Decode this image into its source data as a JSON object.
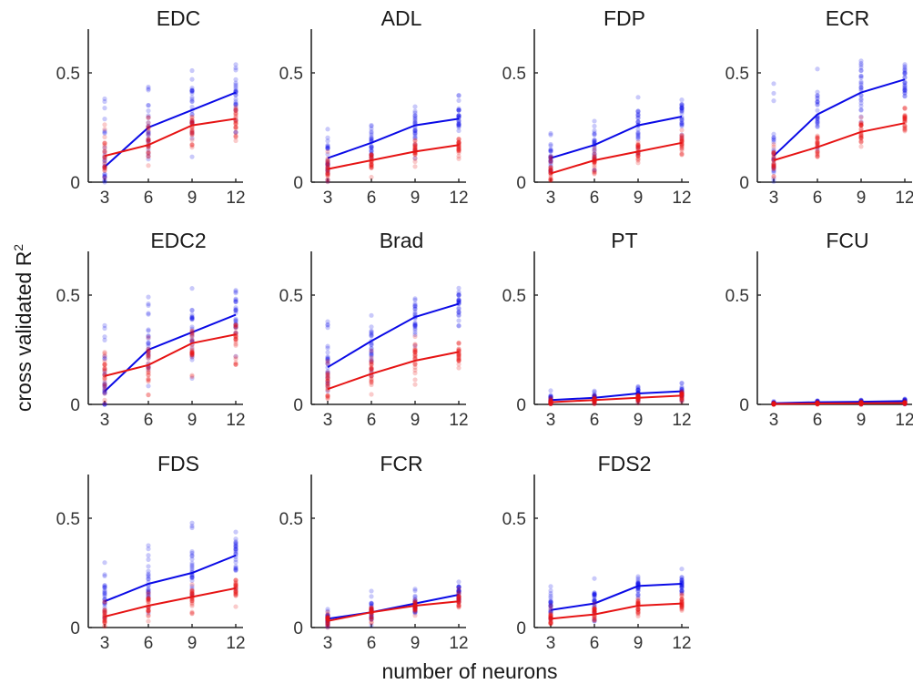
{
  "figure": {
    "ylabel": "cross validated R",
    "ylabel_sup": "2",
    "xlabel": "number of neurons"
  },
  "style": {
    "blue": "#0a0ae6",
    "red": "#e61414",
    "axis": "#262626"
  },
  "chart_data": {
    "type": "scatter",
    "xlabel": "number of neurons",
    "ylabel": "cross validated R²",
    "x": [
      3,
      6,
      9,
      12
    ],
    "xticks": [
      "3",
      "6",
      "9",
      "12"
    ],
    "yticks": [
      "0",
      "0.5"
    ],
    "ylim": [
      0,
      0.7
    ],
    "grid": false,
    "series_order": [
      "blue",
      "red"
    ],
    "panels": [
      {
        "title": "EDC",
        "blue": {
          "mean": [
            0.07,
            0.25,
            0.33,
            0.41
          ],
          "lo": [
            0.0,
            0.0,
            0.1,
            0.22
          ],
          "hi": [
            0.42,
            0.48,
            0.53,
            0.54
          ]
        },
        "red": {
          "mean": [
            0.12,
            0.17,
            0.26,
            0.29
          ],
          "lo": [
            0.0,
            0.05,
            0.15,
            0.18
          ],
          "hi": [
            0.27,
            0.3,
            0.33,
            0.35
          ]
        }
      },
      {
        "title": "ADL",
        "blue": {
          "mean": [
            0.11,
            0.18,
            0.26,
            0.29
          ],
          "lo": [
            0.0,
            0.02,
            0.1,
            0.18
          ],
          "hi": [
            0.25,
            0.31,
            0.35,
            0.41
          ]
        },
        "red": {
          "mean": [
            0.06,
            0.1,
            0.14,
            0.17
          ],
          "lo": [
            0.0,
            0.02,
            0.07,
            0.1
          ],
          "hi": [
            0.14,
            0.16,
            0.2,
            0.22
          ]
        }
      },
      {
        "title": "FDP",
        "blue": {
          "mean": [
            0.11,
            0.17,
            0.26,
            0.3
          ],
          "lo": [
            0.0,
            0.05,
            0.12,
            0.18
          ],
          "hi": [
            0.26,
            0.33,
            0.4,
            0.41
          ]
        },
        "red": {
          "mean": [
            0.04,
            0.1,
            0.14,
            0.18
          ],
          "lo": [
            0.0,
            0.02,
            0.06,
            0.1
          ],
          "hi": [
            0.13,
            0.16,
            0.2,
            0.24
          ]
        }
      },
      {
        "title": "ECR",
        "blue": {
          "mean": [
            0.12,
            0.31,
            0.41,
            0.47
          ],
          "lo": [
            0.0,
            0.15,
            0.24,
            0.3
          ],
          "hi": [
            0.47,
            0.52,
            0.56,
            0.62
          ]
        },
        "red": {
          "mean": [
            0.1,
            0.16,
            0.23,
            0.27
          ],
          "lo": [
            0.0,
            0.06,
            0.12,
            0.2
          ],
          "hi": [
            0.18,
            0.24,
            0.3,
            0.35
          ]
        }
      },
      {
        "title": "EDC2",
        "blue": {
          "mean": [
            0.06,
            0.25,
            0.33,
            0.41
          ],
          "lo": [
            0.0,
            0.05,
            0.09,
            0.19
          ],
          "hi": [
            0.41,
            0.5,
            0.55,
            0.55
          ]
        },
        "red": {
          "mean": [
            0.13,
            0.18,
            0.28,
            0.32
          ],
          "lo": [
            0.0,
            0.02,
            0.12,
            0.16
          ],
          "hi": [
            0.26,
            0.33,
            0.37,
            0.4
          ]
        }
      },
      {
        "title": "Brad",
        "blue": {
          "mean": [
            0.17,
            0.29,
            0.4,
            0.46
          ],
          "lo": [
            0.0,
            0.08,
            0.21,
            0.3
          ],
          "hi": [
            0.39,
            0.44,
            0.55,
            0.59
          ]
        },
        "red": {
          "mean": [
            0.07,
            0.14,
            0.2,
            0.24
          ],
          "lo": [
            0.0,
            0.02,
            0.09,
            0.14
          ],
          "hi": [
            0.2,
            0.26,
            0.33,
            0.33
          ]
        }
      },
      {
        "title": "PT",
        "blue": {
          "mean": [
            0.02,
            0.03,
            0.05,
            0.06
          ],
          "lo": [
            0.0,
            0.0,
            0.01,
            0.01
          ],
          "hi": [
            0.07,
            0.08,
            0.09,
            0.1
          ]
        },
        "red": {
          "mean": [
            0.01,
            0.02,
            0.03,
            0.04
          ],
          "lo": [
            0.0,
            0.0,
            0.0,
            0.01
          ],
          "hi": [
            0.03,
            0.04,
            0.05,
            0.06
          ]
        }
      },
      {
        "title": "FCU",
        "blue": {
          "mean": [
            0.005,
            0.01,
            0.012,
            0.015
          ],
          "lo": [
            0.0,
            0.0,
            0.0,
            0.0
          ],
          "hi": [
            0.015,
            0.02,
            0.025,
            0.03
          ]
        },
        "red": {
          "mean": [
            0.002,
            0.004,
            0.005,
            0.006
          ],
          "lo": [
            0.0,
            0.0,
            0.0,
            0.0
          ],
          "hi": [
            0.01,
            0.012,
            0.012,
            0.015
          ]
        }
      },
      {
        "title": "FDS",
        "blue": {
          "mean": [
            0.12,
            0.2,
            0.25,
            0.33
          ],
          "lo": [
            0.0,
            0.05,
            0.08,
            0.17
          ],
          "hi": [
            0.34,
            0.38,
            0.48,
            0.48
          ]
        },
        "red": {
          "mean": [
            0.05,
            0.1,
            0.14,
            0.18
          ],
          "lo": [
            0.0,
            0.02,
            0.06,
            0.08
          ],
          "hi": [
            0.12,
            0.17,
            0.2,
            0.24
          ]
        }
      },
      {
        "title": "FCR",
        "blue": {
          "mean": [
            0.04,
            0.07,
            0.11,
            0.15
          ],
          "lo": [
            0.0,
            0.01,
            0.05,
            0.09
          ],
          "hi": [
            0.09,
            0.18,
            0.21,
            0.24
          ]
        },
        "red": {
          "mean": [
            0.03,
            0.07,
            0.1,
            0.12
          ],
          "lo": [
            0.0,
            0.02,
            0.05,
            0.08
          ],
          "hi": [
            0.07,
            0.12,
            0.15,
            0.18
          ]
        }
      },
      {
        "title": "FDS2",
        "blue": {
          "mean": [
            0.08,
            0.11,
            0.19,
            0.2
          ],
          "lo": [
            0.0,
            0.02,
            0.1,
            0.13
          ],
          "hi": [
            0.2,
            0.23,
            0.24,
            0.27
          ]
        },
        "red": {
          "mean": [
            0.04,
            0.06,
            0.1,
            0.11
          ],
          "lo": [
            0.0,
            0.01,
            0.05,
            0.07
          ],
          "hi": [
            0.1,
            0.12,
            0.14,
            0.16
          ]
        }
      }
    ]
  }
}
